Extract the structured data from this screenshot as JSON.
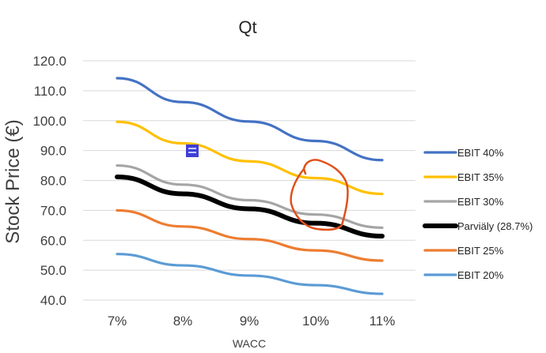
{
  "chart_data": {
    "type": "line",
    "title": "Qt",
    "xlabel": "WACC",
    "ylabel": "Stock Price (€)",
    "categories": [
      "7%",
      "8%",
      "9%",
      "10%",
      "11%"
    ],
    "ylim": [
      40,
      120
    ],
    "yticks": [
      "120.0",
      "110.0",
      "100.0",
      "90.0",
      "80.0",
      "70.0",
      "60.0",
      "50.0",
      "40.0"
    ],
    "grid": "horizontal",
    "legend_position": "right",
    "series": [
      {
        "name": "EBIT 40%",
        "color": "#4472C4",
        "values": [
          114.2,
          106.2,
          99.7,
          93.2,
          86.8
        ]
      },
      {
        "name": "EBIT 35%",
        "color": "#FFC000",
        "values": [
          99.6,
          92.4,
          86.4,
          80.8,
          75.5
        ]
      },
      {
        "name": "EBIT 30%",
        "color": "#A5A5A5",
        "values": [
          85.0,
          78.6,
          73.4,
          68.6,
          64.2
        ]
      },
      {
        "name": "Parviäly (28.7%)",
        "color": "#000000",
        "values": [
          81.2,
          75.5,
          70.5,
          65.7,
          61.4
        ]
      },
      {
        "name": "EBIT 25%",
        "color": "#ED7D31",
        "values": [
          70.0,
          64.6,
          60.4,
          56.6,
          53.2
        ]
      },
      {
        "name": "EBIT 20%",
        "color": "#5B9BD5",
        "values": [
          55.4,
          51.6,
          48.2,
          45.0,
          42.1
        ]
      }
    ]
  }
}
